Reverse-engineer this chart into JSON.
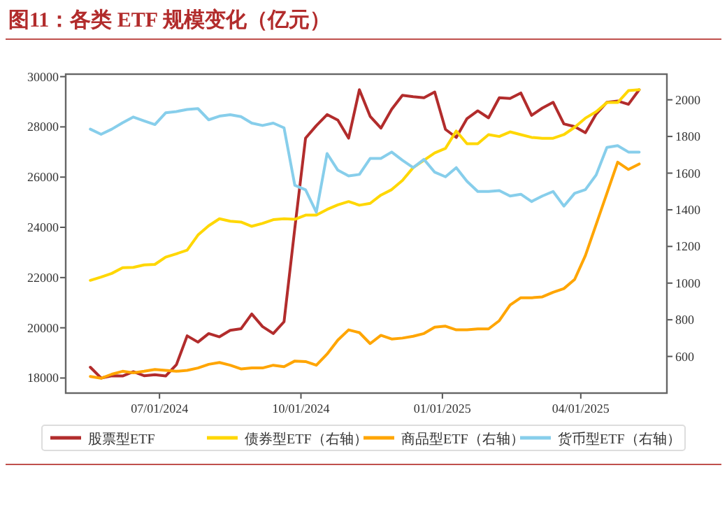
{
  "chart_data": {
    "type": "line",
    "title": "图11：各类 ETF 规模变化（亿元）",
    "legend": "bottom",
    "x": [
      "2024-05-17",
      "2024-05-24",
      "2024-05-31",
      "2024-06-07",
      "2024-06-14",
      "2024-06-21",
      "2024-06-28",
      "2024-07-05",
      "2024-07-12",
      "2024-07-19",
      "2024-07-26",
      "2024-08-02",
      "2024-08-09",
      "2024-08-16",
      "2024-08-23",
      "2024-08-30",
      "2024-09-06",
      "2024-09-13",
      "2024-09-20",
      "2024-09-27",
      "2024-10-04",
      "2024-10-11",
      "2024-10-18",
      "2024-10-25",
      "2024-11-01",
      "2024-11-08",
      "2024-11-15",
      "2024-11-22",
      "2024-11-29",
      "2024-12-06",
      "2024-12-13",
      "2024-12-20",
      "2024-12-27",
      "2025-01-03",
      "2025-01-10",
      "2025-01-17",
      "2025-01-24",
      "2025-01-31",
      "2025-02-07",
      "2025-02-14",
      "2025-02-21",
      "2025-02-28",
      "2025-03-07",
      "2025-03-14",
      "2025-03-21",
      "2025-03-28",
      "2025-04-04",
      "2025-04-11",
      "2025-04-18",
      "2025-04-25",
      "2025-05-02",
      "2025-05-09"
    ],
    "xlim": [
      "2024-05-01",
      "2025-05-27"
    ],
    "xticks": [
      {
        "value": "2024-07-01",
        "label": "07/01/2024"
      },
      {
        "value": "2024-10-01",
        "label": "10/01/2024"
      },
      {
        "value": "2025-01-01",
        "label": "01/01/2025"
      },
      {
        "value": "2025-04-01",
        "label": "04/01/2025"
      }
    ],
    "ylim": [
      17400,
      30100
    ],
    "yticks": [
      18000,
      20000,
      22000,
      24000,
      26000,
      28000,
      30000
    ],
    "y2lim": [
      400,
      2140
    ],
    "y2ticks": [
      600,
      800,
      1000,
      1200,
      1400,
      1600,
      1800,
      2000
    ],
    "series": [
      {
        "name": "股票型ETF",
        "color": "#b22c2c",
        "values": [
          18430,
          18000,
          18090,
          18080,
          18250,
          18090,
          18130,
          18080,
          18530,
          19680,
          19430,
          19770,
          19640,
          19900,
          19960,
          20550,
          20050,
          19770,
          20240,
          23960,
          27550,
          28050,
          28490,
          28270,
          27550,
          29480,
          28420,
          27950,
          28700,
          29260,
          29200,
          29160,
          29390,
          27900,
          27580,
          28330,
          28640,
          28360,
          29160,
          29130,
          29350,
          28460,
          28750,
          28980,
          28120,
          28010,
          27770,
          28510,
          28980,
          29030,
          28900,
          29480
        ]
      },
      {
        "name": "债券型ETF（右轴）",
        "color": "#ffd700",
        "axis": "y2",
        "values": [
          1015,
          1033,
          1053,
          1084,
          1086,
          1099,
          1102,
          1142,
          1160,
          1180,
          1262,
          1313,
          1351,
          1338,
          1333,
          1310,
          1326,
          1346,
          1351,
          1348,
          1371,
          1371,
          1402,
          1427,
          1445,
          1425,
          1435,
          1480,
          1510,
          1560,
          1630,
          1670,
          1710,
          1735,
          1830,
          1760,
          1760,
          1810,
          1800,
          1825,
          1810,
          1795,
          1790,
          1790,
          1810,
          1850,
          1900,
          1935,
          1985,
          1985,
          2050,
          2055
        ]
      },
      {
        "name": "商品型ETF（右轴）",
        "color": "#ffa500",
        "axis": "y2",
        "values": [
          491,
          481,
          503,
          519,
          511,
          519,
          529,
          524,
          519,
          524,
          537,
          557,
          567,
          552,
          532,
          537,
          537,
          552,
          544,
          575,
          572,
          552,
          613,
          689,
          745,
          730,
          670,
          715,
          695,
          700,
          710,
          725,
          760,
          765,
          745,
          745,
          750,
          750,
          795,
          880,
          920,
          920,
          925,
          950,
          970,
          1020,
          1150,
          1320,
          1490,
          1660,
          1620,
          1650
        ]
      },
      {
        "name": "货币型ETF（右轴）",
        "color": "#87ceeb",
        "axis": "y2",
        "values": [
          1840,
          1812,
          1840,
          1875,
          1906,
          1885,
          1865,
          1929,
          1936,
          1947,
          1952,
          1891,
          1911,
          1919,
          1908,
          1873,
          1860,
          1873,
          1847,
          1534,
          1509,
          1387,
          1707,
          1616,
          1585,
          1593,
          1680,
          1680,
          1715,
          1670,
          1630,
          1675,
          1605,
          1580,
          1630,
          1555,
          1500,
          1500,
          1505,
          1475,
          1485,
          1445,
          1475,
          1500,
          1420,
          1490,
          1510,
          1590,
          1740,
          1750,
          1715,
          1715
        ]
      }
    ]
  }
}
